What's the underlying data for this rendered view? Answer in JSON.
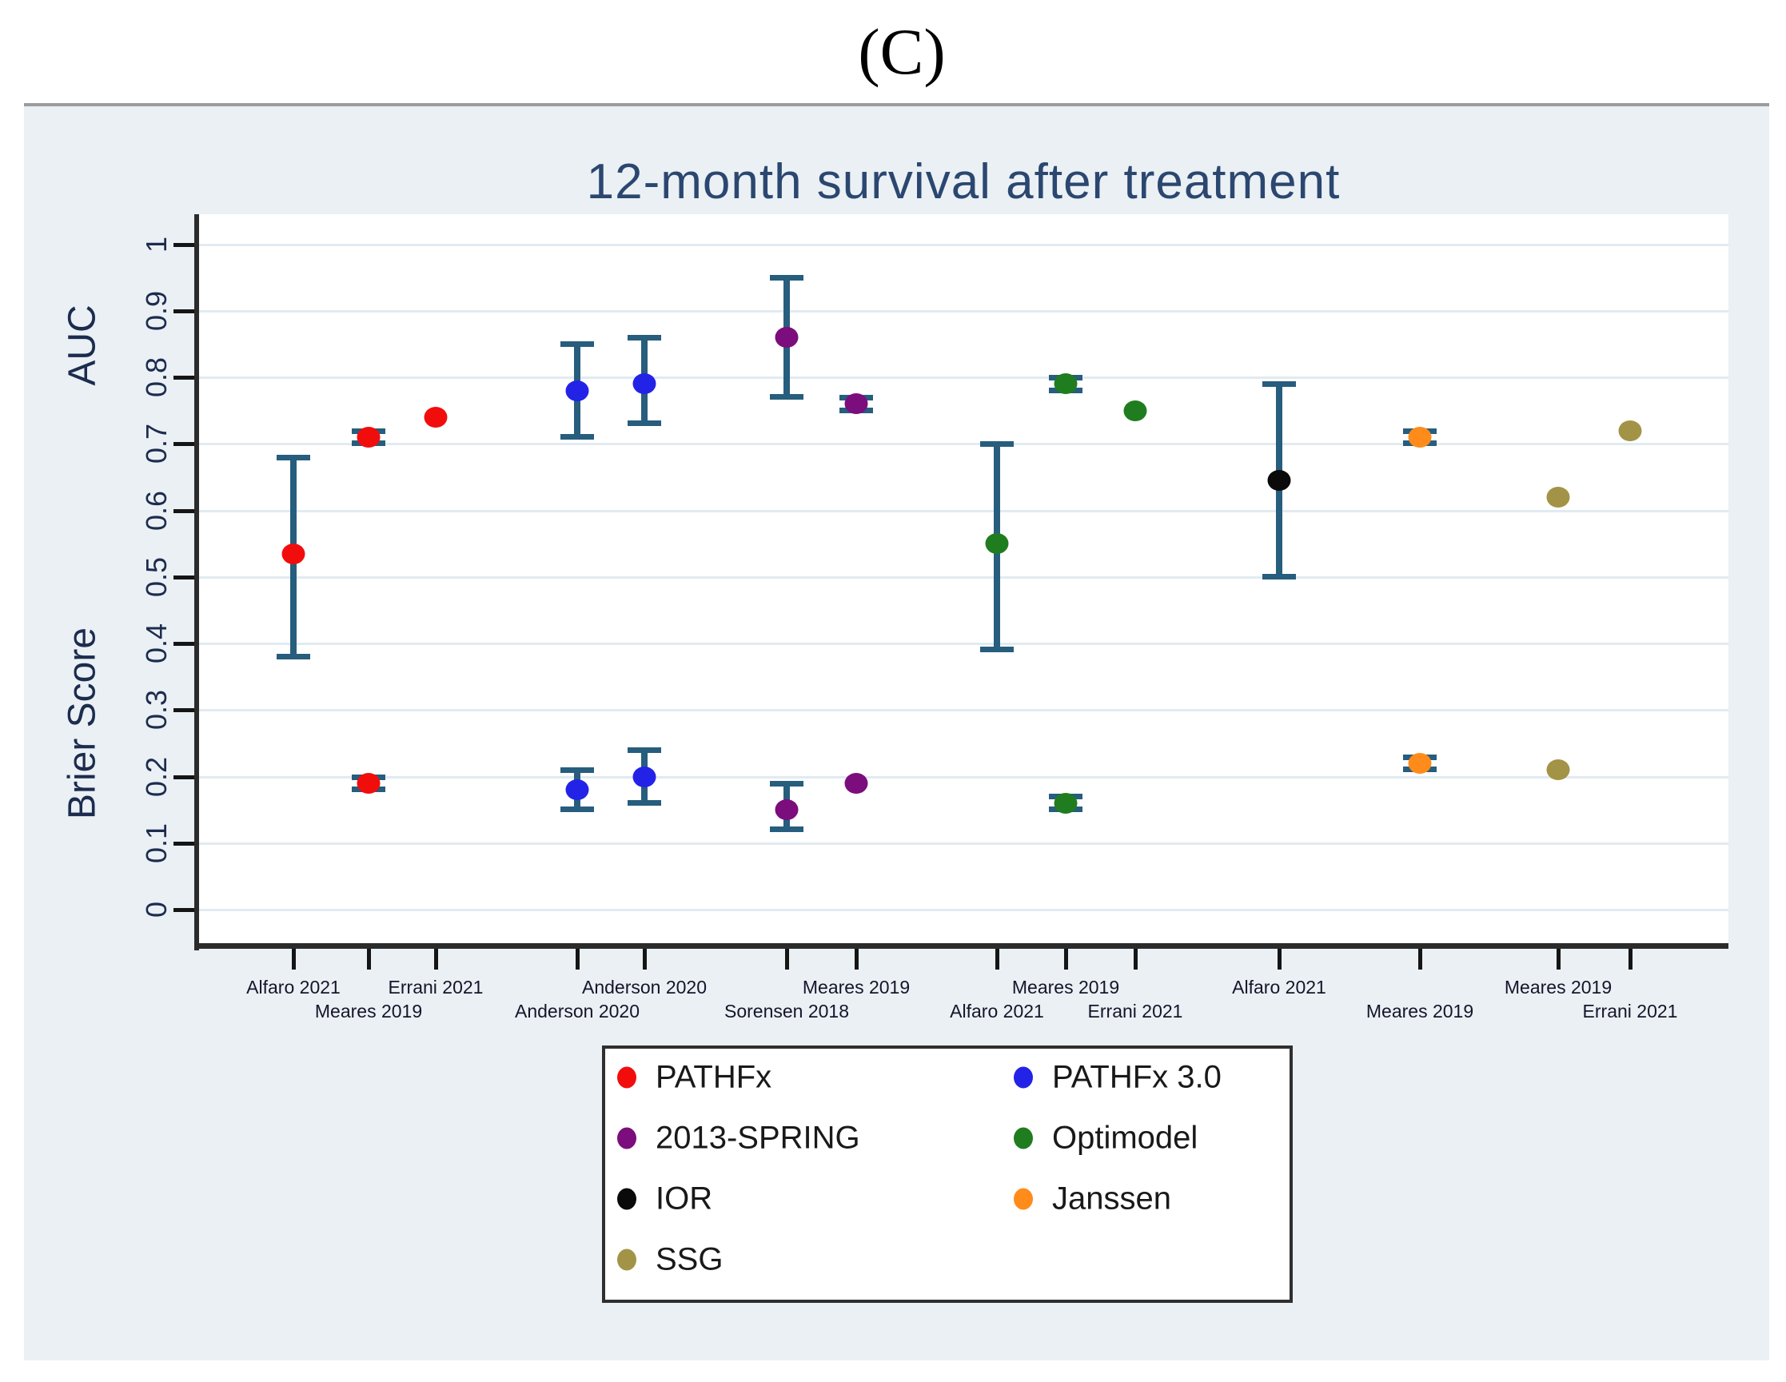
{
  "figure_label": "(C)",
  "chart_data": {
    "type": "scatter",
    "title": "12-month survival after treatment",
    "y_axis": {
      "label_upper": "AUC",
      "label_lower": "Brier Score",
      "range": [
        0,
        1
      ],
      "tick_values": [
        0,
        0.1,
        0.2,
        0.3,
        0.4,
        0.5,
        0.6,
        0.7,
        0.8,
        0.9,
        1
      ],
      "tick_labels": [
        "0",
        "0.1",
        "0.2",
        "0.3",
        "0.4",
        "0.5",
        "0.6",
        "0.7",
        "0.8",
        "0.9",
        "1"
      ],
      "grid": true
    },
    "x_ticks": [
      {
        "label": "Alfaro 2021",
        "row": "upper"
      },
      {
        "label": "Meares 2019",
        "row": "lower"
      },
      {
        "label": "Errani 2021",
        "row": "upper"
      },
      {
        "label": "Anderson 2020",
        "row": "lower"
      },
      {
        "label": "Anderson 2020",
        "row": "upper"
      },
      {
        "label": "Sorensen 2018",
        "row": "lower"
      },
      {
        "label": "Meares 2019",
        "row": "upper"
      },
      {
        "label": "Alfaro 2021",
        "row": "lower"
      },
      {
        "label": "Meares 2019",
        "row": "upper"
      },
      {
        "label": "Errani 2021",
        "row": "lower"
      },
      {
        "label": "Alfaro 2021",
        "row": "upper"
      },
      {
        "label": "Meares 2019",
        "row": "lower"
      },
      {
        "label": "Meares 2019",
        "row": "upper"
      },
      {
        "label": "Errani 2021",
        "row": "lower"
      }
    ],
    "error_bar_color": "#275d7d",
    "legend_position": "bottom-center",
    "series": [
      {
        "name": "PATHFx",
        "color": "#f20d0d",
        "points": [
          {
            "tick": 0,
            "study": "Alfaro 2021",
            "auc": 0.535,
            "auc_ci": [
              0.38,
              0.68
            ]
          },
          {
            "tick": 1,
            "study": "Meares 2019",
            "auc": 0.71,
            "auc_ci": [
              0.7,
              0.72
            ],
            "brier": 0.19,
            "brier_ci": [
              0.18,
              0.2
            ]
          },
          {
            "tick": 2,
            "study": "Errani 2021",
            "auc": 0.74
          }
        ]
      },
      {
        "name": "PATHFx 3.0",
        "color": "#2323e8",
        "points": [
          {
            "tick": 3,
            "study": "Anderson 2020",
            "auc": 0.78,
            "auc_ci": [
              0.71,
              0.85
            ],
            "brier": 0.18,
            "brier_ci": [
              0.15,
              0.21
            ]
          },
          {
            "tick": 4,
            "study": "Anderson 2020",
            "auc": 0.79,
            "auc_ci": [
              0.73,
              0.86
            ],
            "brier": 0.2,
            "brier_ci": [
              0.16,
              0.24
            ]
          }
        ]
      },
      {
        "name": "2013-SPRING",
        "color": "#7c0d7c",
        "points": [
          {
            "tick": 5,
            "study": "Sorensen 2018",
            "auc": 0.86,
            "auc_ci": [
              0.77,
              0.95
            ],
            "brier": 0.15,
            "brier_ci": [
              0.12,
              0.19
            ]
          },
          {
            "tick": 6,
            "study": "Meares 2019",
            "auc": 0.76,
            "auc_ci": [
              0.75,
              0.77
            ],
            "brier": 0.19
          }
        ]
      },
      {
        "name": "Optimodel",
        "color": "#1f7d1f",
        "points": [
          {
            "tick": 7,
            "study": "Alfaro 2021",
            "auc": 0.55,
            "auc_ci": [
              0.39,
              0.7
            ]
          },
          {
            "tick": 8,
            "study": "Meares 2019",
            "auc": 0.79,
            "auc_ci": [
              0.78,
              0.8
            ],
            "brier": 0.16,
            "brier_ci": [
              0.15,
              0.17
            ]
          },
          {
            "tick": 9,
            "study": "Errani 2021",
            "auc": 0.75
          }
        ]
      },
      {
        "name": "IOR",
        "color": "#0a0a0a",
        "points": [
          {
            "tick": 10,
            "study": "Alfaro 2021",
            "auc": 0.645,
            "auc_ci": [
              0.5,
              0.79
            ]
          }
        ]
      },
      {
        "name": "Janssen",
        "color": "#ff8c1a",
        "points": [
          {
            "tick": 11,
            "study": "Meares 2019",
            "auc": 0.71,
            "auc_ci": [
              0.7,
              0.72
            ],
            "brier": 0.22,
            "brier_ci": [
              0.21,
              0.23
            ]
          }
        ]
      },
      {
        "name": "SSG",
        "color": "#a39346",
        "points": [
          {
            "tick": 12,
            "study": "Meares 2019",
            "auc": 0.62,
            "brier": 0.21
          },
          {
            "tick": 13,
            "study": "Errani 2021",
            "auc": 0.72
          }
        ]
      }
    ]
  },
  "legend": {
    "items": [
      {
        "label": "PATHFx",
        "color": "#f20d0d"
      },
      {
        "label": "PATHFx 3.0",
        "color": "#2323e8"
      },
      {
        "label": "2013-SPRING",
        "color": "#7c0d7c"
      },
      {
        "label": "Optimodel",
        "color": "#1f7d1f"
      },
      {
        "label": "IOR",
        "color": "#0a0a0a"
      },
      {
        "label": "Janssen",
        "color": "#ff8c1a"
      },
      {
        "label": "SSG",
        "color": "#a39346"
      }
    ]
  }
}
